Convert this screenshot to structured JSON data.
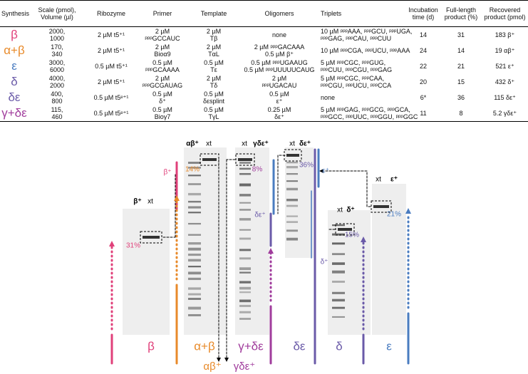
{
  "table": {
    "headers": [
      [
        "Synthesis"
      ],
      [
        "Scale (pmol),",
        "Volume (µl)"
      ],
      [
        "Ribozyme"
      ],
      [
        "Primer"
      ],
      [
        "Template"
      ],
      [
        "Oligomers"
      ],
      [
        "Triplets"
      ],
      [
        "Incubation",
        "time (d)"
      ],
      [
        "Full-length",
        "product (%)"
      ],
      [
        "Recovered",
        "product (pmol)"
      ]
    ],
    "rows": [
      [
        [
          "β"
        ],
        [
          "2000,",
          "1000"
        ],
        [
          "2 µM t5⁺¹"
        ],
        [
          "2 µM",
          "ᵖᵖᵖGCCAUC"
        ],
        [
          "2 µM",
          "Tβ"
        ],
        [
          "none"
        ],
        [
          "10 µM ᵖᵖᵖAAA, ᵖᵖᵖGCU, ᵖᵖᵖUGA,",
          "ᵖᵖᵖGAG, ᵖᵖᵖCAU, ᵖᵖᵖCUU"
        ],
        [
          "14"
        ],
        [
          "31"
        ],
        [
          "183 β⁺"
        ]
      ],
      [
        [
          "α+β"
        ],
        [
          "170,",
          "340"
        ],
        [
          "2 µM t5⁺¹"
        ],
        [
          "2 µM",
          "Bioα9"
        ],
        [
          "2 µM",
          "TαL"
        ],
        [
          "2 µM ᵖᵖᵖGACAAA",
          "0.5 µM β⁺"
        ],
        [
          "10 µM ᵖᵖᵖCGA, ᵖᵖᵖUCU, ᵖᵖᵖAAA"
        ],
        [
          "24"
        ],
        [
          "14"
        ],
        [
          "19 αβ⁺"
        ]
      ],
      [
        [
          "ε"
        ],
        [
          "3000,",
          "6000"
        ],
        [
          "0.5 µM t5⁺¹"
        ],
        [
          "0.5 µM",
          "ᵖᵖᵖGCAAAA"
        ],
        [
          "0.5 µM",
          "Tε"
        ],
        [
          "0.5 µM ᵖᵖᵖUGAAUG",
          "0.5 µM ᵖᵖᵖUUUUUCAUG"
        ],
        [
          "5 µM ᵖᵖᵖCGC, ᵖᵖᵖGUG,",
          "ᵖᵖᵖCUU, ᵖᵖᵖCGU, ᵖᵖᵖGAG"
        ],
        [
          "22"
        ],
        [
          "21"
        ],
        [
          "521 ε⁺"
        ]
      ],
      [
        [
          "δ"
        ],
        [
          "4000,",
          "2000"
        ],
        [
          "2 µM t5⁺¹"
        ],
        [
          "2 µM",
          "ᵖᵖᵖGCGAUAG"
        ],
        [
          "2 µM",
          "Tδ"
        ],
        [
          "2 µM",
          "ᵖᵖᵖUGACAU"
        ],
        [
          "5 µM ᵖᵖᵖCGC, ᵖᵖᵖCAA,",
          "ᵖᵖᵖCGU, ᵖᵖᵖUCU, ᵖᵖᵖCCA"
        ],
        [
          "20"
        ],
        [
          "15"
        ],
        [
          "432 δ⁺"
        ]
      ],
      [
        [
          "δε"
        ],
        [
          "400,",
          "800"
        ],
        [
          "0.5 µM t5ᵉ⁺¹"
        ],
        [
          "0.5 µM",
          "δ⁺"
        ],
        [
          "0.5 µM",
          "δεsplint"
        ],
        [
          "0.5 µM",
          "ε⁺"
        ],
        [
          "none"
        ],
        [
          "6*"
        ],
        [
          "36"
        ],
        [
          "115 δε⁺"
        ]
      ],
      [
        [
          "γ+δε"
        ],
        [
          "115,",
          "460"
        ],
        [
          "0.5 µM t5ᵉ⁺¹"
        ],
        [
          "0.5 µM",
          "Bioγ7"
        ],
        [
          "0.5 µM",
          "TγL"
        ],
        [
          "0.25 µM",
          "δε⁺"
        ],
        [
          "5 µM ᵖᵖᵖGAG, ᵖᵖᵖGCG, ᵖᵖᵖGCA,",
          "ᵖᵖᵖGCC, ᵖᵖᵖUUC, ᵖᵖᵖGGU, ᵖᵖᵖGGC"
        ],
        [
          "11"
        ],
        [
          "8"
        ],
        [
          "5.2 γδε⁺"
        ]
      ]
    ]
  },
  "figure": {
    "labels": [
      "β⁺",
      "xt",
      "31%",
      "β⁺",
      "αβ⁺",
      "xt",
      "14%",
      "xt",
      "γδε⁺",
      "8%",
      "xt",
      "δε⁺",
      "36%",
      "ε⁺",
      "δε⁺",
      "δ⁺",
      "xt",
      "δ⁺",
      "15%",
      "xt",
      "ε⁺",
      "21%"
    ],
    "lane_labels": [
      "β",
      "α+β",
      "γ+δε",
      "δε",
      "δ",
      "ε"
    ],
    "product_labels": [
      "αβ⁺",
      "γδε⁺"
    ]
  }
}
